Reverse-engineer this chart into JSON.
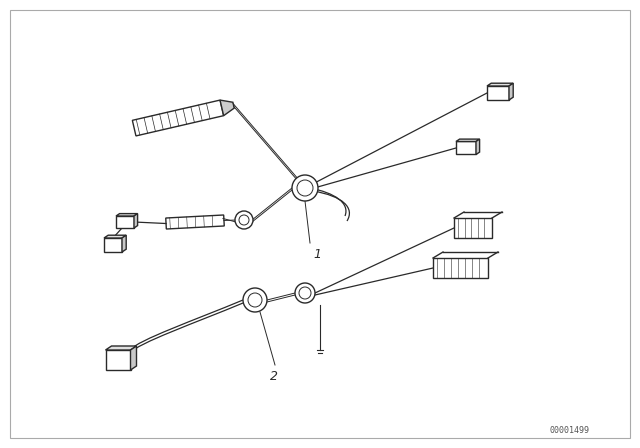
{
  "background_color": "#ffffff",
  "line_color": "#2a2a2a",
  "part_number": "00001499",
  "label_1": "1",
  "label_2": "2",
  "figsize": [
    6.4,
    4.48
  ],
  "dpi": 100
}
